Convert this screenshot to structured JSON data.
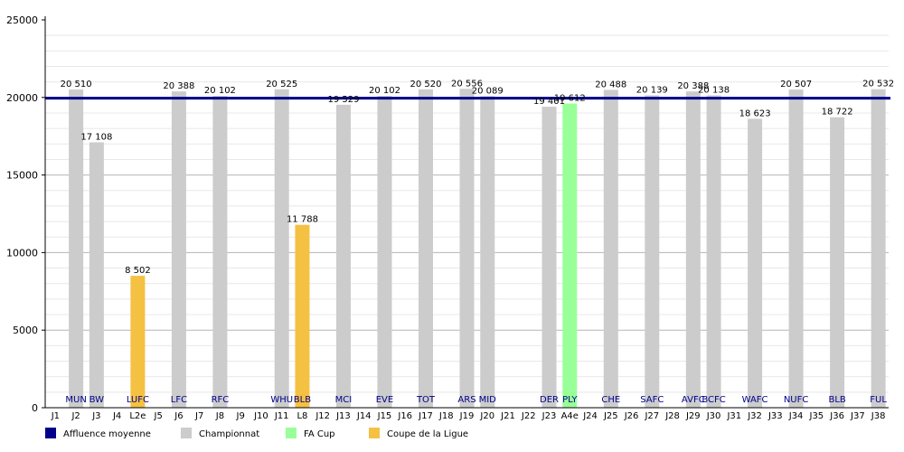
{
  "chart_data": {
    "type": "bar",
    "categories": [
      "J1",
      "J2",
      "J3",
      "J4",
      "L2e",
      "J5",
      "J6",
      "J7",
      "J8",
      "J9",
      "J10",
      "J11",
      "L8",
      "J12",
      "J13",
      "J14",
      "J15",
      "J16",
      "J17",
      "J18",
      "J19",
      "J20",
      "J21",
      "J22",
      "J23",
      "A4e",
      "J24",
      "J25",
      "J26",
      "J27",
      "J28",
      "J29",
      "J30",
      "J31",
      "J32",
      "J33",
      "J34",
      "J35",
      "J36",
      "J37",
      "J38"
    ],
    "values": [
      null,
      20510,
      17108,
      null,
      8502,
      null,
      20388,
      null,
      20102,
      null,
      null,
      20525,
      11788,
      null,
      19529,
      null,
      20102,
      null,
      20520,
      null,
      20556,
      20089,
      null,
      null,
      19401,
      19612,
      null,
      20488,
      null,
      20139,
      null,
      20388,
      20138,
      null,
      18623,
      null,
      20507,
      null,
      18722,
      null,
      20532
    ],
    "value_labels": [
      "",
      "20 510",
      "17 108",
      "",
      "8 502",
      "",
      "20 388",
      "",
      "20 102",
      "",
      "",
      "20 525",
      "11 788",
      "",
      "19 529",
      "",
      "20 102",
      "",
      "20 520",
      "",
      "20 556",
      "20 089",
      "",
      "",
      "19 401",
      "19 612",
      "",
      "20 488",
      "",
      "20 139",
      "",
      "20 388",
      "20 138",
      "",
      "18 623",
      "",
      "20 507",
      "",
      "18 722",
      "",
      "20 532"
    ],
    "teams": [
      "",
      "MUN",
      "BW",
      "",
      "LUFC",
      "",
      "LFC",
      "",
      "RFC",
      "",
      "",
      "WHU",
      "BLB",
      "",
      "MCI",
      "",
      "EVE",
      "",
      "TOT",
      "",
      "ARS",
      "MID",
      "",
      "",
      "DER",
      "PLY",
      "",
      "CHE",
      "",
      "SAFC",
      "",
      "AVFC",
      "BCFC",
      "",
      "WAFC",
      "",
      "NUFC",
      "",
      "BLB",
      "",
      "FUL"
    ],
    "competitions": [
      "",
      "Championnat",
      "Championnat",
      "",
      "Coupe de la Ligue",
      "",
      "Championnat",
      "",
      "Championnat",
      "",
      "",
      "Championnat",
      "Coupe de la Ligue",
      "",
      "Championnat",
      "",
      "Championnat",
      "",
      "Championnat",
      "",
      "Championnat",
      "Championnat",
      "",
      "",
      "Championnat",
      "FA Cup",
      "",
      "Championnat",
      "",
      "Championnat",
      "",
      "Championnat",
      "Championnat",
      "",
      "Championnat",
      "",
      "Championnat",
      "",
      "Championnat",
      "",
      "Championnat"
    ],
    "average_attendance": 19950,
    "ylim": [
      0,
      25000
    ],
    "yticks": [
      0,
      5000,
      10000,
      15000,
      20000,
      25000
    ],
    "grid": true,
    "legend_position": "bottom",
    "legend": [
      {
        "label": "Affluence moyenne",
        "color": "#00008b"
      },
      {
        "label": "Championnat",
        "color": "#cccccc"
      },
      {
        "label": "FA Cup",
        "color": "#99ff99"
      },
      {
        "label": "Coupe de la Ligue",
        "color": "#f5c142"
      }
    ],
    "colors": {
      "Championnat": "#cccccc",
      "FA Cup": "#99ff99",
      "Coupe de la Ligue": "#f5c142",
      "average": "#00008b",
      "team_label": "#00008b"
    }
  }
}
